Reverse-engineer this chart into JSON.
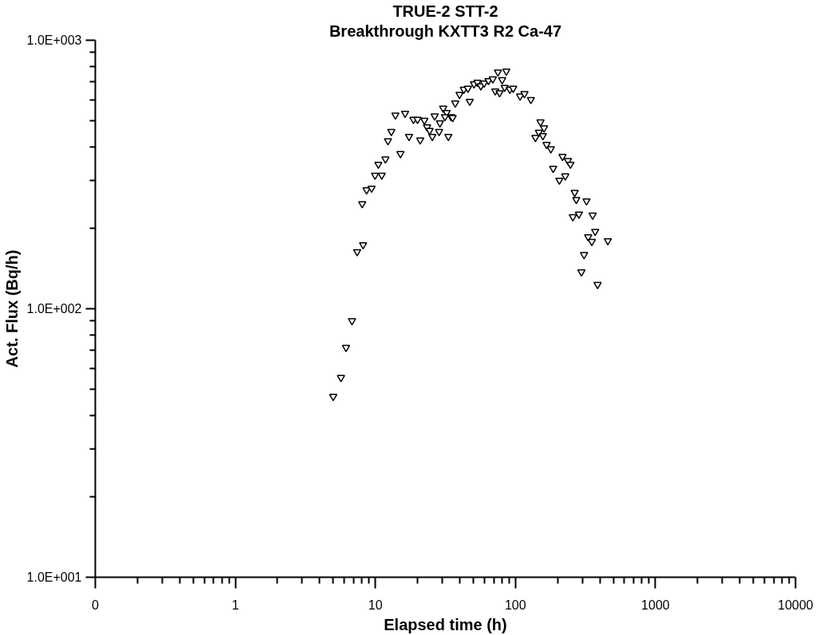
{
  "chart_data": {
    "type": "scatter",
    "title": "TRUE-2 STT-2",
    "subtitle": "Breakthrough KXTT3 R2 Ca-47",
    "xlabel": "Elapsed time (h)",
    "ylabel": "Act. Flux (Bq/h)",
    "log": "xy",
    "grid": false,
    "marker": "triangle",
    "xlim": [
      0.1,
      10000
    ],
    "ylim": [
      10,
      1000
    ],
    "xticks": [
      {
        "value": 0.1,
        "label": "0"
      },
      {
        "value": 0.2,
        "label": null
      },
      {
        "value": 0.3,
        "label": null
      },
      {
        "value": 0.4,
        "label": null
      },
      {
        "value": 0.5,
        "label": null
      },
      {
        "value": 0.6,
        "label": null
      },
      {
        "value": 0.7,
        "label": null
      },
      {
        "value": 0.8,
        "label": null
      },
      {
        "value": 0.9,
        "label": null
      },
      {
        "value": 1,
        "label": "1"
      },
      {
        "value": 2,
        "label": null
      },
      {
        "value": 3,
        "label": null
      },
      {
        "value": 4,
        "label": null
      },
      {
        "value": 5,
        "label": null
      },
      {
        "value": 6,
        "label": null
      },
      {
        "value": 7,
        "label": null
      },
      {
        "value": 8,
        "label": null
      },
      {
        "value": 9,
        "label": null
      },
      {
        "value": 10,
        "label": "10"
      },
      {
        "value": 20,
        "label": null
      },
      {
        "value": 30,
        "label": null
      },
      {
        "value": 40,
        "label": null
      },
      {
        "value": 50,
        "label": null
      },
      {
        "value": 60,
        "label": null
      },
      {
        "value": 70,
        "label": null
      },
      {
        "value": 80,
        "label": null
      },
      {
        "value": 90,
        "label": null
      },
      {
        "value": 100,
        "label": "100"
      },
      {
        "value": 200,
        "label": null
      },
      {
        "value": 300,
        "label": null
      },
      {
        "value": 400,
        "label": null
      },
      {
        "value": 500,
        "label": null
      },
      {
        "value": 600,
        "label": null
      },
      {
        "value": 700,
        "label": null
      },
      {
        "value": 800,
        "label": null
      },
      {
        "value": 900,
        "label": null
      },
      {
        "value": 1000,
        "label": "1000"
      },
      {
        "value": 2000,
        "label": null
      },
      {
        "value": 3000,
        "label": null
      },
      {
        "value": 4000,
        "label": null
      },
      {
        "value": 5000,
        "label": null
      },
      {
        "value": 6000,
        "label": null
      },
      {
        "value": 7000,
        "label": null
      },
      {
        "value": 8000,
        "label": null
      },
      {
        "value": 9000,
        "label": null
      },
      {
        "value": 10000,
        "label": "10000"
      }
    ],
    "yticks": [
      {
        "value": 10,
        "label": "1.0E+001"
      },
      {
        "value": 20,
        "label": null
      },
      {
        "value": 30,
        "label": null
      },
      {
        "value": 40,
        "label": null
      },
      {
        "value": 50,
        "label": null
      },
      {
        "value": 60,
        "label": null
      },
      {
        "value": 70,
        "label": null
      },
      {
        "value": 80,
        "label": null
      },
      {
        "value": 90,
        "label": null
      },
      {
        "value": 100,
        "label": "1.0E+002"
      },
      {
        "value": 200,
        "label": null
      },
      {
        "value": 300,
        "label": null
      },
      {
        "value": 400,
        "label": null
      },
      {
        "value": 500,
        "label": null
      },
      {
        "value": 600,
        "label": null
      },
      {
        "value": 700,
        "label": null
      },
      {
        "value": 800,
        "label": null
      },
      {
        "value": 900,
        "label": null
      },
      {
        "value": 1000,
        "label": "1.0E+003"
      }
    ],
    "series": [
      {
        "color": "#000000",
        "x": [
          5.0,
          5.68,
          6.17,
          6.81,
          7.41,
          8.17,
          8.05,
          8.65,
          9.4,
          9.95,
          11.1,
          10.5,
          11.8,
          12.3,
          13.0,
          13.9,
          16.3,
          15.1,
          17.4,
          18.7,
          20.0,
          22.4,
          20.9,
          23.4,
          24.4,
          25.5,
          28.5,
          26.5,
          28.9,
          30.5,
          32.3,
          31.4,
          34.7,
          33.2,
          37.2,
          35.6,
          39.9,
          42.8,
          47.2,
          45.8,
          50.6,
          53.5,
          56.6,
          59.8,
          64.2,
          68.9,
          75.0,
          86.1,
          80.4,
          71.8,
          77.1,
          83.8,
          91.2,
          96.4,
          108,
          116,
          129,
          151,
          160,
          147,
          139,
          157,
          167,
          179,
          217,
          237,
          247,
          186,
          206,
          227,
          265,
          272,
          322,
          257,
          284,
          356,
          371,
          331,
          351,
          457,
          309,
          296,
          386
        ],
        "values": [
          47.1,
          55.4,
          71.7,
          90.2,
          163,
          173,
          246,
          277,
          281,
          314,
          314,
          345,
          361,
          422,
          457,
          526,
          534,
          378,
          438,
          507,
          507,
          503,
          425,
          475,
          461,
          438,
          457,
          522,
          492,
          558,
          538,
          519,
          519,
          438,
          583,
          515,
          628,
          656,
          592,
          662,
          687,
          697,
          676,
          692,
          707,
          717,
          761,
          767,
          712,
          647,
          637,
          667,
          656,
          662,
          619,
          632,
          601,
          496,
          471,
          454,
          434,
          441,
          409,
          394,
          369,
          356,
          345,
          333,
          301,
          312,
          271,
          255,
          252,
          220,
          225,
          223,
          194,
          185,
          178,
          179,
          159,
          137,
          123
        ]
      }
    ]
  }
}
